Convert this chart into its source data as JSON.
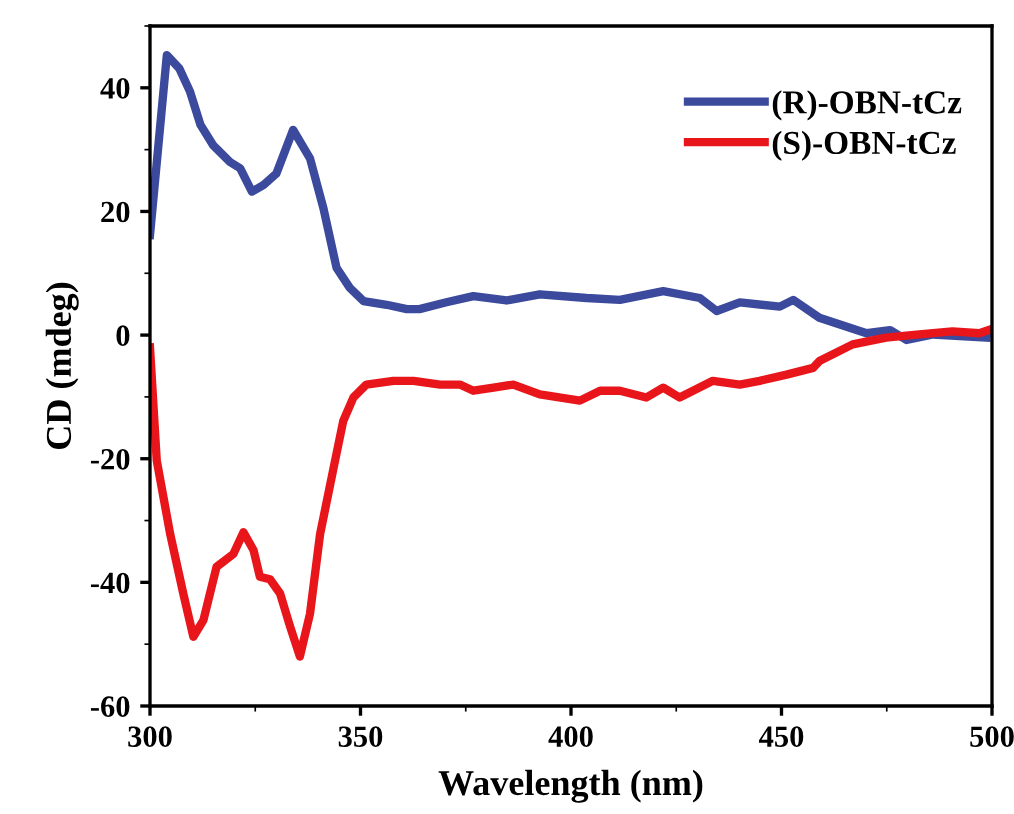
{
  "chart_data": {
    "type": "line",
    "xlabel": "Wavelength (nm)",
    "ylabel": "CD (mdeg)",
    "xlim": [
      300,
      500
    ],
    "ylim": [
      -60,
      50
    ],
    "xticks": [
      300,
      350,
      400,
      450,
      500
    ],
    "yticks": [
      -60,
      -40,
      -20,
      0,
      20,
      40
    ],
    "grid": false,
    "legend": "top right",
    "marker": "none",
    "line_style": "solid",
    "series": [
      {
        "name": "(R)-OBN-tCz",
        "color": "#3b4a9c",
        "x": [
          300,
          304,
          307,
          309.5,
          312,
          315,
          319,
          321.4,
          324.2,
          327,
          330,
          334,
          338,
          341.2,
          344.3,
          347.5,
          350.7,
          356.2,
          361,
          364,
          370.4,
          376.8,
          384.7,
          392.6,
          403.7,
          411.6,
          421.9,
          430.6,
          434.6,
          440.1,
          449.6,
          452.8,
          459,
          470.2,
          475.8,
          479.7,
          486,
          498.7
        ],
        "values": [
          16.2,
          45.3,
          43.1,
          39.4,
          34,
          30.7,
          28,
          27,
          23.2,
          24.3,
          26.1,
          33.2,
          28.6,
          20.5,
          10.9,
          7.6,
          5.5,
          4.9,
          4.2,
          4.2,
          5.3,
          6.3,
          5.6,
          6.6,
          6.0,
          5.7,
          7.1,
          6.0,
          3.9,
          5.3,
          4.6,
          5.7,
          2.8,
          0.3,
          0.8,
          -0.8,
          0.1,
          -0.4
        ]
      },
      {
        "name": "(S)-OBN-tCz",
        "color": "#e8151b",
        "x": [
          300,
          301.6,
          304.8,
          307.9,
          310.3,
          312.7,
          315.8,
          319.8,
          322.2,
          324.6,
          326.1,
          328.5,
          330.9,
          333.3,
          335.6,
          338,
          340.4,
          343.6,
          345.9,
          348.3,
          351.4,
          357.8,
          362.6,
          368.9,
          373.6,
          376.8,
          381.6,
          386.3,
          392.6,
          402.1,
          406.9,
          411.6,
          417.9,
          421.9,
          425.8,
          433.7,
          440.1,
          444.8,
          451.2,
          457.5,
          459,
          466.9,
          474.8,
          482.7,
          490.6,
          497,
          500
        ],
        "values": [
          -2.0,
          -20.3,
          -32.2,
          -41.8,
          -48.8,
          -46.1,
          -37.5,
          -35.4,
          -31.9,
          -34.8,
          -39.1,
          -39.5,
          -41.8,
          -47.2,
          -52.0,
          -45.1,
          -32.2,
          -21.5,
          -13.9,
          -10.1,
          -8.0,
          -7.4,
          -7.4,
          -8.0,
          -8.0,
          -9.0,
          -8.5,
          -8.0,
          -9.6,
          -10.6,
          -9.0,
          -9.0,
          -10.1,
          -8.5,
          -10.1,
          -7.4,
          -8.0,
          -7.4,
          -6.4,
          -5.3,
          -4.2,
          -1.5,
          -0.4,
          0.1,
          0.6,
          0.3,
          1.0
        ]
      }
    ]
  }
}
